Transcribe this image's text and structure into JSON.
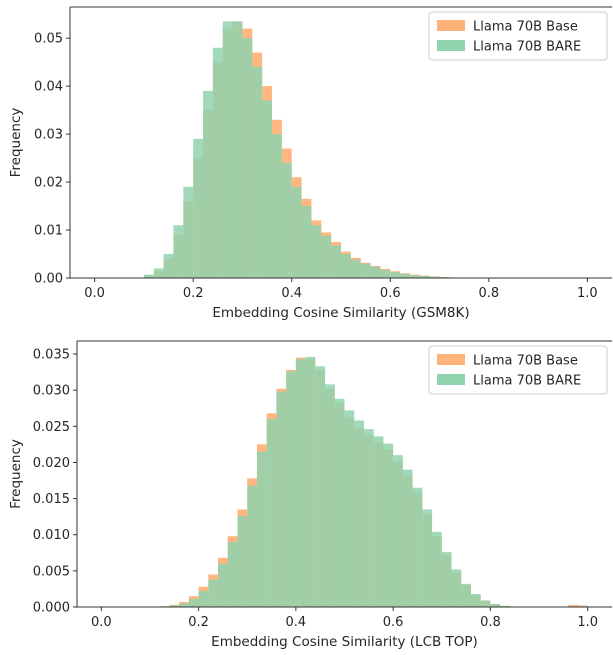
{
  "chart_data": [
    {
      "type": "histogram",
      "xlabel": "Embedding Cosine Similarity (GSM8K)",
      "ylabel": "Frequency",
      "xlim": [
        -0.05,
        1.05
      ],
      "ylim": [
        0,
        0.0565
      ],
      "xticks": [
        0.0,
        0.2,
        0.4,
        0.6,
        0.8,
        1.0
      ],
      "xtick_labels": [
        "0.0",
        "0.2",
        "0.4",
        "0.6",
        "0.8",
        "1.0"
      ],
      "yticks": [
        0,
        0.01,
        0.02,
        0.03,
        0.04,
        0.05
      ],
      "ytick_labels": [
        "0.00",
        "0.01",
        "0.02",
        "0.03",
        "0.04",
        "0.05"
      ],
      "legend_position": "top-right",
      "series": [
        {
          "name": "Llama 70B Base",
          "color": "#ffb27a",
          "x": [
            0.1,
            0.12,
            0.14,
            0.16,
            0.18,
            0.2,
            0.22,
            0.24,
            0.26,
            0.28,
            0.3,
            0.32,
            0.34,
            0.36,
            0.38,
            0.4,
            0.42,
            0.44,
            0.46,
            0.48,
            0.5,
            0.52,
            0.54,
            0.56,
            0.58,
            0.6,
            0.62,
            0.64,
            0.66,
            0.68,
            0.7,
            0.72,
            0.74,
            0.76,
            0.78
          ],
          "values": [
            0.0005,
            0.0015,
            0.004,
            0.009,
            0.016,
            0.025,
            0.035,
            0.045,
            0.052,
            0.0535,
            0.052,
            0.047,
            0.04,
            0.033,
            0.027,
            0.021,
            0.0165,
            0.012,
            0.0095,
            0.0075,
            0.0055,
            0.0042,
            0.0032,
            0.0025,
            0.0019,
            0.0014,
            0.001,
            0.0007,
            0.0005,
            0.0003,
            0.0002,
            0.0001,
            5e-05,
            3e-05,
            1e-05
          ]
        },
        {
          "name": "Llama 70B BARE",
          "color": "#8fd4ae",
          "x": [
            0.1,
            0.12,
            0.14,
            0.16,
            0.18,
            0.2,
            0.22,
            0.24,
            0.26,
            0.28,
            0.3,
            0.32,
            0.34,
            0.36,
            0.38,
            0.4,
            0.42,
            0.44,
            0.46,
            0.48,
            0.5,
            0.52,
            0.54,
            0.56,
            0.58,
            0.6,
            0.62,
            0.64,
            0.66,
            0.68,
            0.7,
            0.72,
            0.74,
            0.76,
            0.78
          ],
          "values": [
            0.0007,
            0.002,
            0.005,
            0.011,
            0.019,
            0.029,
            0.039,
            0.048,
            0.0535,
            0.0535,
            0.05,
            0.044,
            0.037,
            0.03,
            0.024,
            0.019,
            0.015,
            0.011,
            0.0088,
            0.0068,
            0.005,
            0.0038,
            0.003,
            0.0023,
            0.0017,
            0.0012,
            0.0009,
            0.0006,
            0.0004,
            0.0003,
            0.00015,
            0.0001,
            5e-05,
            2e-05,
            1e-05
          ]
        }
      ]
    },
    {
      "type": "histogram",
      "xlabel": "Embedding Cosine Similarity (LCB TOP)",
      "ylabel": "Frequency",
      "xlim": [
        -0.05,
        1.05
      ],
      "ylim": [
        0,
        0.0368
      ],
      "xticks": [
        0.0,
        0.2,
        0.4,
        0.6,
        0.8,
        1.0
      ],
      "xtick_labels": [
        "0.0",
        "0.2",
        "0.4",
        "0.6",
        "0.8",
        "1.0"
      ],
      "yticks": [
        0,
        0.005,
        0.01,
        0.015,
        0.02,
        0.025,
        0.03,
        0.035
      ],
      "ytick_labels": [
        "0.000",
        "0.005",
        "0.010",
        "0.015",
        "0.020",
        "0.025",
        "0.030",
        "0.035"
      ],
      "legend_position": "top-right",
      "series": [
        {
          "name": "Llama 70B Base",
          "color": "#ffb27a",
          "x": [
            0.12,
            0.14,
            0.16,
            0.18,
            0.2,
            0.22,
            0.24,
            0.26,
            0.28,
            0.3,
            0.32,
            0.34,
            0.36,
            0.38,
            0.4,
            0.42,
            0.44,
            0.46,
            0.48,
            0.5,
            0.52,
            0.54,
            0.56,
            0.58,
            0.6,
            0.62,
            0.64,
            0.66,
            0.68,
            0.7,
            0.72,
            0.74,
            0.76,
            0.78,
            0.8,
            0.82,
            0.84,
            0.96,
            0.98
          ],
          "values": [
            0.0001,
            0.0003,
            0.0007,
            0.0015,
            0.0028,
            0.0045,
            0.0068,
            0.0098,
            0.0135,
            0.0178,
            0.0225,
            0.0268,
            0.0302,
            0.0328,
            0.0345,
            0.0343,
            0.0328,
            0.0302,
            0.0282,
            0.0262,
            0.0248,
            0.0238,
            0.0228,
            0.0218,
            0.0202,
            0.0182,
            0.0158,
            0.0128,
            0.0098,
            0.0072,
            0.0048,
            0.003,
            0.0017,
            0.0009,
            0.0004,
            0.00015,
            5e-05,
            0.0003,
            0.0002
          ]
        },
        {
          "name": "Llama 70B BARE",
          "color": "#8fd4ae",
          "x": [
            0.12,
            0.14,
            0.16,
            0.18,
            0.2,
            0.22,
            0.24,
            0.26,
            0.28,
            0.3,
            0.32,
            0.34,
            0.36,
            0.38,
            0.4,
            0.42,
            0.44,
            0.46,
            0.48,
            0.5,
            0.52,
            0.54,
            0.56,
            0.58,
            0.6,
            0.62,
            0.64,
            0.66,
            0.68,
            0.7,
            0.72,
            0.74,
            0.76,
            0.78,
            0.8,
            0.82,
            0.84,
            0.96,
            0.98
          ],
          "values": [
            5e-05,
            0.0002,
            0.0005,
            0.0011,
            0.0022,
            0.0038,
            0.006,
            0.009,
            0.0126,
            0.0168,
            0.0215,
            0.026,
            0.0298,
            0.0326,
            0.0343,
            0.0346,
            0.0333,
            0.0308,
            0.0288,
            0.0272,
            0.0258,
            0.0246,
            0.0236,
            0.0226,
            0.021,
            0.019,
            0.0165,
            0.0135,
            0.0104,
            0.0076,
            0.0052,
            0.0032,
            0.0018,
            0.0009,
            0.0004,
            0.00015,
            5e-05,
            0.0001,
            5e-05
          ]
        }
      ]
    }
  ]
}
